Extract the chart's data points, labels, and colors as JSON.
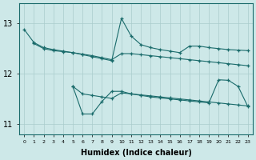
{
  "xlabel": "Humidex (Indice chaleur)",
  "x": [
    0,
    1,
    2,
    3,
    4,
    5,
    6,
    7,
    8,
    9,
    10,
    11,
    12,
    13,
    14,
    15,
    16,
    17,
    18,
    19,
    20,
    21,
    22,
    23
  ],
  "line_upper_jagged": [
    12.88,
    12.62,
    12.52,
    12.48,
    12.45,
    12.42,
    12.38,
    12.34,
    12.3,
    12.26,
    13.1,
    12.75,
    12.58,
    12.52,
    12.48,
    12.45,
    12.42,
    12.55,
    12.55,
    12.52,
    12.5,
    12.48,
    12.47,
    12.46
  ],
  "line_upper_flat": [
    null,
    12.6,
    12.5,
    12.46,
    12.44,
    12.42,
    12.39,
    12.36,
    12.32,
    12.28,
    12.4,
    12.4,
    12.38,
    12.36,
    12.34,
    12.32,
    12.3,
    12.28,
    12.26,
    12.24,
    12.22,
    12.2,
    12.18,
    12.16
  ],
  "line_lower_flat": [
    null,
    null,
    null,
    null,
    null,
    11.75,
    11.6,
    11.57,
    11.54,
    11.51,
    11.62,
    11.6,
    11.58,
    11.56,
    11.54,
    11.52,
    11.5,
    11.48,
    11.46,
    11.44,
    11.42,
    11.4,
    11.38,
    11.36
  ],
  "line_lower_jagged": [
    null,
    null,
    null,
    null,
    null,
    11.75,
    11.2,
    11.2,
    11.45,
    11.65,
    11.65,
    11.6,
    11.57,
    11.54,
    11.52,
    11.5,
    11.48,
    11.46,
    11.44,
    11.42,
    11.88,
    11.87,
    11.75,
    11.35
  ],
  "bg_color": "#cde8e8",
  "line_color": "#1a6b6b",
  "grid_color": "#aacccc",
  "ylim": [
    10.8,
    13.4
  ],
  "yticks": [
    11,
    12,
    13
  ],
  "xticks": [
    0,
    1,
    2,
    3,
    4,
    5,
    6,
    7,
    8,
    9,
    10,
    11,
    12,
    13,
    14,
    15,
    16,
    17,
    18,
    19,
    20,
    21,
    22,
    23
  ]
}
